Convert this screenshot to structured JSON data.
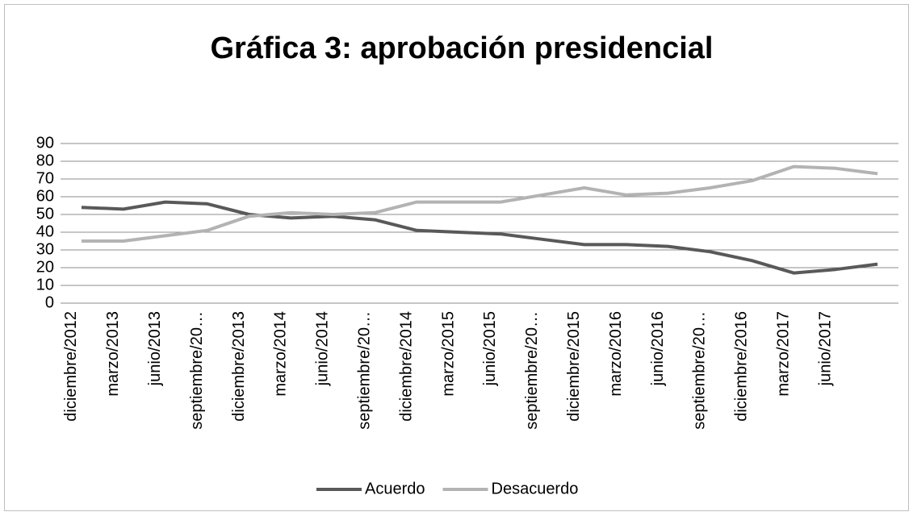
{
  "chart_data": {
    "type": "line",
    "title": "Gráfica 3: aprobación presidencial",
    "categories": [
      "diciembre/2012",
      "marzo/2013",
      "junio/2013",
      "septiembre/20…",
      "diciembre/2013",
      "marzo/2014",
      "junio/2014",
      "septiembre/20…",
      "diciembre/2014",
      "marzo/2015",
      "junio/2015",
      "septiembre/20…",
      "diciembre/2015",
      "marzo/2016",
      "junio/2016",
      "septiembre/20…",
      "diciembre/2016",
      "marzo/2017",
      "junio/2017",
      null
    ],
    "series": [
      {
        "name": "Acuerdo",
        "color": "#595959",
        "values": [
          54,
          53,
          57,
          56,
          50,
          48,
          49,
          47,
          41,
          40,
          39,
          36,
          33,
          33,
          32,
          29,
          24,
          17,
          19,
          22
        ]
      },
      {
        "name": "Desacuerdo",
        "color": "#b3b3b3",
        "values": [
          35,
          35,
          38,
          41,
          49,
          51,
          50,
          51,
          57,
          57,
          57,
          61,
          65,
          61,
          62,
          65,
          69,
          77,
          76,
          73
        ]
      }
    ],
    "ylim": [
      0,
      90
    ],
    "yticks": [
      0,
      10,
      20,
      30,
      40,
      50,
      60,
      70,
      80,
      90
    ],
    "grid": true,
    "legend": "bottom"
  }
}
